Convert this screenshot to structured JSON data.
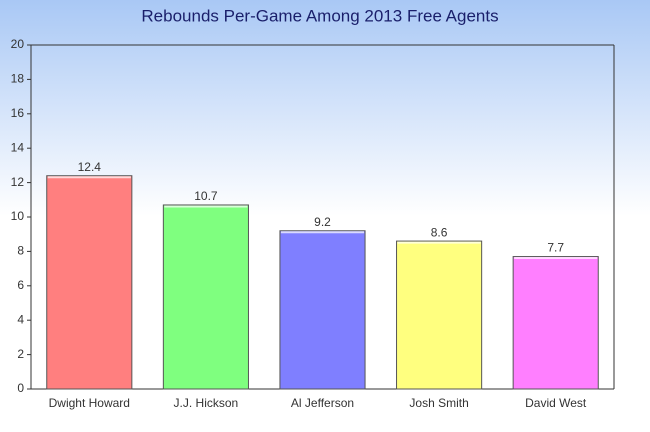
{
  "chart_data": {
    "type": "bar",
    "title": "Rebounds Per-Game Among 2013 Free Agents",
    "categories": [
      "Dwight Howard",
      "J.J. Hickson",
      "Al Jefferson",
      "Josh Smith",
      "David West"
    ],
    "values": [
      12.4,
      10.7,
      9.2,
      8.6,
      7.7
    ],
    "colors": [
      "#ff7f7f",
      "#7fff7f",
      "#7f7fff",
      "#ffff7f",
      "#ff7fff"
    ],
    "ylim": [
      0,
      20
    ],
    "yticks": [
      0,
      2,
      4,
      6,
      8,
      10,
      12,
      14,
      16,
      18,
      20
    ],
    "grid": false
  }
}
